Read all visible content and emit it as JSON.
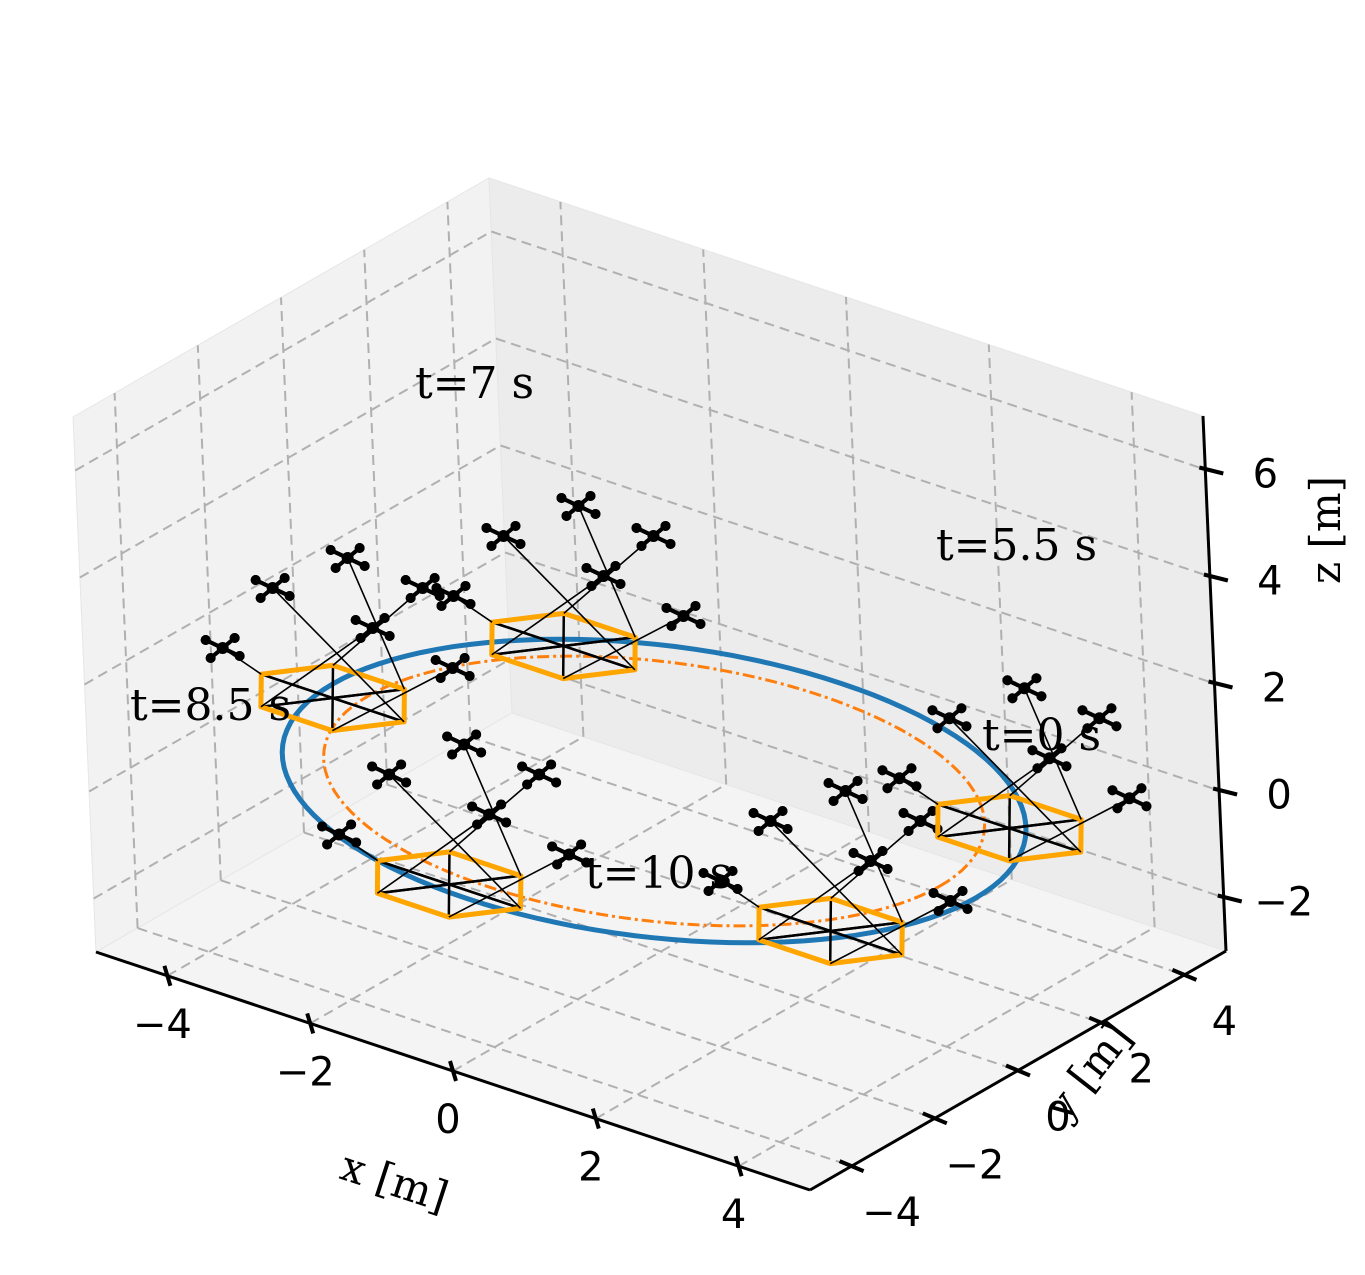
{
  "chart_data": {
    "type": "line",
    "projection": "3d",
    "title": "",
    "xlabel": "x [m]",
    "ylabel": "y [m]",
    "zlabel": "z [m]",
    "xlim": [
      -5,
      5
    ],
    "ylim": [
      -5,
      5
    ],
    "zlim": [
      -3,
      7
    ],
    "xticks": [
      "−4",
      "−2",
      "0",
      "2",
      "4"
    ],
    "yticks": [
      "−4",
      "−2",
      "0",
      "2",
      "4"
    ],
    "zticks": [
      "−2",
      "0",
      "2",
      "4",
      "6"
    ],
    "grid": true,
    "series": [
      {
        "kind": "solid",
        "color": "#1f77b4",
        "radius": 4.5,
        "z": 0
      },
      {
        "kind": "dashed",
        "color": "#ff7f0e",
        "radius": 4.0,
        "z": 0
      }
    ],
    "snapshots": [
      {
        "label": "t=0 s",
        "angle_deg": -30
      },
      {
        "label": "t=5.5 s",
        "angle_deg": 30
      },
      {
        "label": "t=7 s",
        "angle_deg": 135
      },
      {
        "label": "t=8.5 s",
        "angle_deg": 185
      },
      {
        "label": "t=10 s",
        "angle_deg": 265
      }
    ],
    "platform_color": "#ffa500",
    "drone_color": "#000000"
  }
}
